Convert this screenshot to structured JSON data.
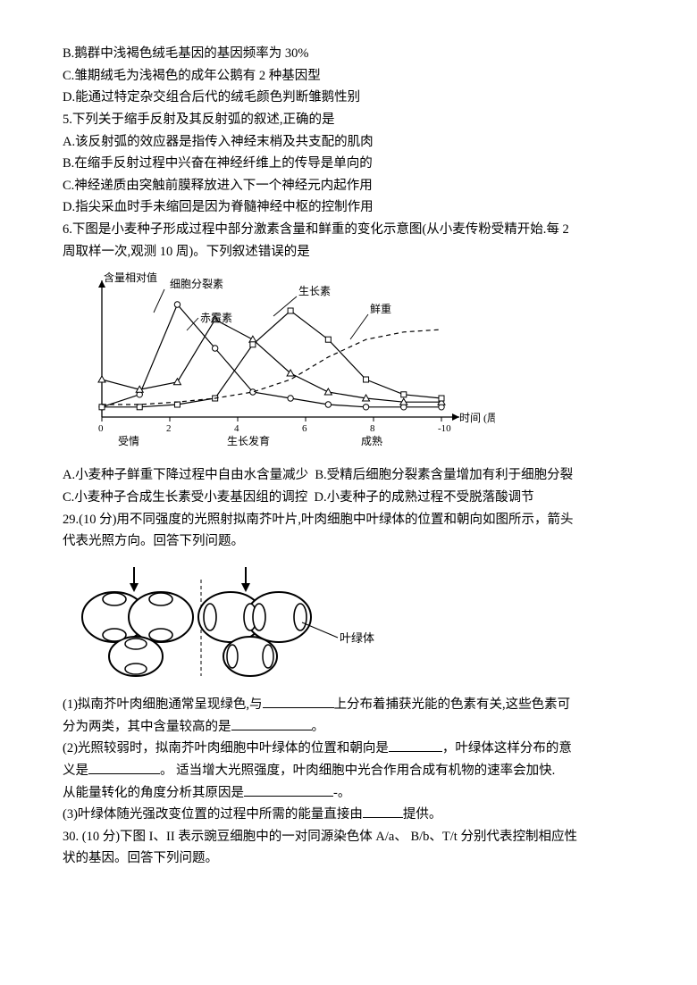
{
  "q_partB": "B.鹅群中浅褐色绒毛基因的基因频率为 30%",
  "q_partC": "C.雏期绒毛为浅褐色的成年公鹅有 2 种基因型",
  "q_partD": "D.能通过特定杂交组合后代的绒毛颜色判断雏鹅性别",
  "q5_stem": "5.下列关于缩手反射及其反射弧的叙述,正确的是",
  "q5_A": "A.该反射弧的效应器是指传入神经末梢及共支配的肌肉",
  "q5_B": "B.在缩手反射过程中兴奋在神经纤维上的传导是单向的",
  "q5_C": "C.神经递质由突触前膜释放进入下一个神经元内起作用",
  "q5_D": "D.指尖采血时手未缩回是因为脊髓神经中枢的控制作用",
  "q6_stem1": "6.下图是小麦种子形成过程中部分激素含量和鲜重的变化示意图(从小麦传粉受精开始.每 2",
  "q6_stem2": "周取样一次,观测 10 周)。下列叙述错误的是",
  "chart": {
    "ylabel": "含量相对值",
    "series_label_cytokinin": "细胞分裂素",
    "series_label_gibberellin": "赤霉素",
    "series_label_auxin": "生长素",
    "series_label_freshweight": "鲜重",
    "xticks": [
      "0",
      "2",
      "4",
      "6",
      "8",
      "-10"
    ],
    "xlabel": "时间 (周)",
    "xlabels_below": [
      "受情",
      "生长发育",
      "成熟"
    ],
    "cytokinin_pts": [
      [
        0,
        8
      ],
      [
        1,
        18
      ],
      [
        2,
        90
      ],
      [
        3,
        55
      ],
      [
        4,
        20
      ],
      [
        5,
        15
      ],
      [
        6,
        10
      ],
      [
        7,
        8
      ],
      [
        8,
        8
      ],
      [
        9,
        8
      ]
    ],
    "gibberellin_pts": [
      [
        0,
        30
      ],
      [
        1,
        22
      ],
      [
        2,
        28
      ],
      [
        3,
        78
      ],
      [
        4,
        62
      ],
      [
        5,
        35
      ],
      [
        6,
        20
      ],
      [
        7,
        15
      ],
      [
        8,
        12
      ],
      [
        9,
        12
      ]
    ],
    "auxin_pts": [
      [
        0,
        8
      ],
      [
        1,
        8
      ],
      [
        2,
        10
      ],
      [
        3,
        15
      ],
      [
        4,
        58
      ],
      [
        5,
        85
      ],
      [
        6,
        62
      ],
      [
        7,
        30
      ],
      [
        8,
        18
      ],
      [
        9,
        15
      ]
    ],
    "freshweight_pts": [
      [
        0,
        10
      ],
      [
        1,
        10
      ],
      [
        2,
        12
      ],
      [
        3,
        15
      ],
      [
        4,
        20
      ],
      [
        5,
        30
      ],
      [
        6,
        48
      ],
      [
        7,
        62
      ],
      [
        8,
        68
      ],
      [
        9,
        70
      ]
    ],
    "axis_color": "#000000",
    "line_color": "#000000",
    "dash_color": "#000000"
  },
  "q6_A": "A.小麦种子鲜重下降过程中自由水含量减少",
  "q6_B": "B.受精后细胞分裂素含量增加有利于细胞分裂",
  "q6_C": "C.小麦种子合成生长素受小麦基因组的调控",
  "q6_D": "D.小麦种子的成熟过程不受脱落酸调节",
  "q29_stem1": "29.(10 分)用不同强度的光照射拟南芥叶片,叶肉细胞中叶绿体的位置和朝向如图所示，箭头",
  "q29_stem2": "代表光照方向。回答下列问题。",
  "cell": {
    "label": "叶绿体",
    "stroke": "#000000",
    "fill": "#ffffff"
  },
  "q29_1a": "(1)拟南芥叶肉细胞通常呈现绿色,与",
  "q29_1b": "上分布着捕获光能的色素有关,这些色素可",
  "q29_1c": "分为两类，其中含量较高的是",
  "q29_1d": "。",
  "q29_2a": "(2)光照较弱时，拟南芥叶肉细胞中叶绿体的位置和朝向是",
  "q29_2b": "，叶绿体这样分布的意",
  "q29_2c": "义是",
  "q29_2d": "。 适当增大光照强度，叶肉细胞中光合作用合成有机物的速率会加快.",
  "q29_2e": "从能量转化的角度分析其原因是",
  "q29_2f": "-。",
  "q29_3a": "(3)叶绿体随光强改变位置的过程中所需的能量直接由",
  "q29_3b": "提供。",
  "q30_1": "30. (10 分)下图 I、II 表示豌豆细胞中的一对同源染色体 A/a、 B/b、T/t 分别代表控制相应性",
  "q30_2": "状的基因。回答下列问题。"
}
